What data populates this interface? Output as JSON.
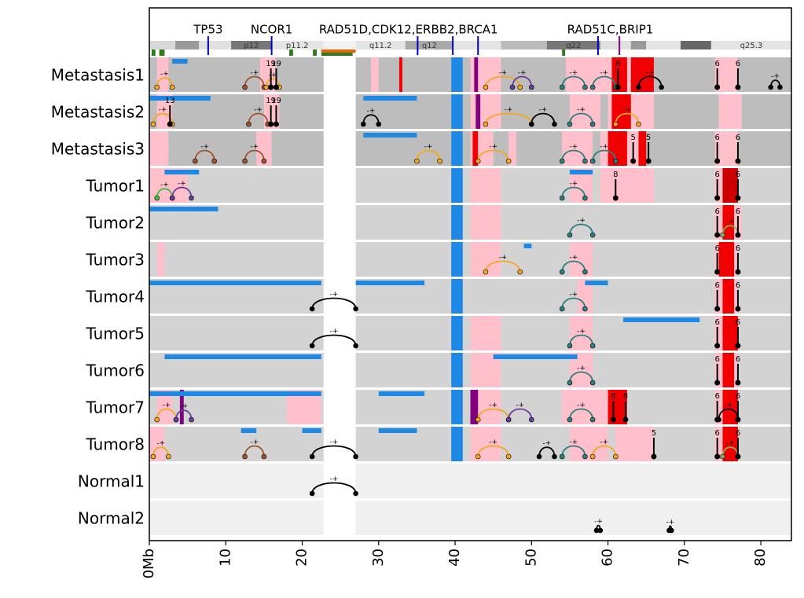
{
  "chart_data": {
    "type": "genome-tracks",
    "xlim": [
      0,
      84
    ],
    "xticks": [
      {
        "value": 0,
        "label": "0Mb"
      },
      10,
      20,
      30,
      40,
      50,
      60,
      70,
      80
    ],
    "gene_labels": [
      {
        "text": "TP53",
        "x": 7.7
      },
      {
        "text": "NCOR1",
        "x": 16.0
      },
      {
        "text": "RAD51D,CDK12,ERBB2,BRCA1",
        "x": 33.9
      },
      {
        "text": "RAD51C,BRIP1",
        "x": 60.3
      }
    ],
    "gene_lines": [
      {
        "x": 7.7,
        "color": "#0000cc"
      },
      {
        "x": 16.0,
        "color": "#0000cc"
      },
      {
        "x": 35.1,
        "color": "#0000cc"
      },
      {
        "x": 39.7,
        "color": "#0000cc"
      },
      {
        "x": 43.0,
        "color": "#0000cc"
      },
      {
        "x": 58.7,
        "color": "#0000cc"
      },
      {
        "x": 61.5,
        "color": "#800080"
      }
    ],
    "bands": [
      {
        "start": 0,
        "end": 3.4,
        "color": "#d8d8d8"
      },
      {
        "start": 3.4,
        "end": 6.5,
        "color": "#999999"
      },
      {
        "start": 6.5,
        "end": 10.7,
        "color": "#e0e0e0"
      },
      {
        "start": 10.7,
        "end": 16.0,
        "color": "#777777",
        "label": "p12"
      },
      {
        "start": 16.0,
        "end": 22.7,
        "color": "#e4e4e4",
        "label": "p11.2"
      },
      {
        "start": 22.7,
        "end": 27.0,
        "color": "#f2f2f2"
      },
      {
        "start": 27.0,
        "end": 33.5,
        "color": "#e4e4e4",
        "label": "q11.2"
      },
      {
        "start": 33.5,
        "end": 39.8,
        "color": "#aaaaaa",
        "label": "q12"
      },
      {
        "start": 39.8,
        "end": 46.0,
        "color": "#e4e4e4"
      },
      {
        "start": 46.0,
        "end": 52.0,
        "color": "#bbbbbb"
      },
      {
        "start": 52.0,
        "end": 59.0,
        "color": "#777777",
        "label": "q22"
      },
      {
        "start": 59.0,
        "end": 63.0,
        "color": "#e0e0e0"
      },
      {
        "start": 63.0,
        "end": 65.0,
        "color": "#999999"
      },
      {
        "start": 65.0,
        "end": 69.5,
        "color": "#e4e4e4"
      },
      {
        "start": 69.5,
        "end": 73.5,
        "color": "#666666"
      },
      {
        "start": 73.5,
        "end": 84.0,
        "color": "#e4e4e4",
        "label": "q25.3"
      }
    ],
    "features": [
      {
        "start": 0.3,
        "end": 0.8,
        "color": "#2e7d1a"
      },
      {
        "start": 1.3,
        "end": 2.0,
        "color": "#2e7d1a"
      },
      {
        "start": 18.3,
        "end": 18.8,
        "color": "#2e7d1a"
      },
      {
        "start": 21.4,
        "end": 21.9,
        "color": "#2e7d1a"
      },
      {
        "start": 22.5,
        "end": 26.6,
        "color": "#2e7d1a"
      },
      {
        "start": 22.5,
        "end": 27.0,
        "color": "#e8630a",
        "top": true
      },
      {
        "start": 54.0,
        "end": 54.4,
        "color": "#2e7d1a"
      }
    ],
    "centromere": [
      22.8,
      27.0
    ],
    "loss_color": "#1e88e5",
    "sv_label": "-+",
    "samples": [
      {
        "name": "Metastasis1",
        "background": "#bdbdbd",
        "segments": [
          [
            1,
            2.5,
            "#ffc0cb"
          ],
          [
            14.5,
            16.5,
            "#ffc0cb"
          ],
          [
            29,
            30,
            "#ffc0cb"
          ],
          [
            42,
            46,
            "#ffc0cb"
          ],
          [
            54.5,
            60,
            "#ffc0cb"
          ],
          [
            60,
            66,
            "#ffc0cb"
          ],
          [
            74,
            77,
            "#ffc0cb"
          ],
          [
            32.7,
            33.1,
            "#f00000"
          ],
          [
            60.5,
            62.5,
            "#f00000"
          ],
          [
            63,
            66,
            "#f00000"
          ],
          [
            42.5,
            43,
            "#800080"
          ],
          [
            39.5,
            41,
            "#1e88e5"
          ]
        ],
        "losses": [
          [
            3,
            5
          ]
        ],
        "arcs": [
          [
            1,
            3,
            "#f5a623"
          ],
          [
            12.5,
            15,
            "#a0522d"
          ],
          [
            15.3,
            17,
            "#f5a623"
          ],
          [
            44,
            48.5,
            "#f5a623"
          ],
          [
            47.5,
            50,
            "#6a3d9a"
          ],
          [
            54,
            57,
            "#2f7f7f"
          ],
          [
            58,
            61,
            "#2f7f7f"
          ],
          [
            64,
            67,
            "#000000"
          ],
          [
            81.3,
            82.5,
            "#000000"
          ]
        ],
        "markers": [
          [
            15.9,
            19
          ],
          [
            16.6,
            19
          ],
          [
            61.3,
            8
          ],
          [
            74.3,
            6
          ],
          [
            77,
            6
          ]
        ]
      },
      {
        "name": "Metastasis2",
        "background": "#bdbdbd",
        "segments": [
          [
            1,
            3,
            "#ffc0cb"
          ],
          [
            15,
            17,
            "#ffc0cb"
          ],
          [
            42,
            46,
            "#ffc0cb"
          ],
          [
            55,
            59,
            "#ffc0cb"
          ],
          [
            60,
            66,
            "#ffc0cb"
          ],
          [
            74.5,
            77.5,
            "#ffc0cb"
          ],
          [
            60.5,
            63,
            "#f00000"
          ],
          [
            42.7,
            43.3,
            "#800080"
          ],
          [
            39.5,
            41,
            "#1e88e5"
          ]
        ],
        "losses": [
          [
            0,
            8
          ],
          [
            28,
            35
          ]
        ],
        "arcs": [
          [
            0.5,
            3,
            "#f5a623"
          ],
          [
            13,
            15.5,
            "#a0522d"
          ],
          [
            28,
            30,
            "#000000"
          ],
          [
            44,
            50,
            "#f5a623"
          ],
          [
            50,
            53,
            "#000000"
          ],
          [
            55,
            58,
            "#2f7f7f"
          ],
          [
            61,
            64,
            "#f5a623"
          ]
        ],
        "markers": [
          [
            2.7,
            13
          ],
          [
            15.9,
            19
          ],
          [
            16.6,
            19
          ]
        ]
      },
      {
        "name": "Metastasis3",
        "background": "#bdbdbd",
        "segments": [
          [
            0,
            2.5,
            "#ffc0cb"
          ],
          [
            14,
            16,
            "#ffc0cb"
          ],
          [
            42,
            45,
            "#ffc0cb"
          ],
          [
            47,
            48,
            "#ffc0cb"
          ],
          [
            54,
            58,
            "#ffc0cb"
          ],
          [
            59,
            64,
            "#ffc0cb"
          ],
          [
            74,
            77,
            "#ffc0cb"
          ],
          [
            42.3,
            43,
            "#f00000"
          ],
          [
            60,
            62.5,
            "#f00000"
          ],
          [
            64,
            65,
            "#f00000"
          ],
          [
            39.5,
            41,
            "#1e88e5"
          ]
        ],
        "losses": [
          [
            28,
            35
          ]
        ],
        "arcs": [
          [
            6,
            8.5,
            "#a0522d"
          ],
          [
            12.5,
            15,
            "#a0522d"
          ],
          [
            35,
            38,
            "#f5a623"
          ],
          [
            43,
            47,
            "#f5a623"
          ],
          [
            54,
            57,
            "#2f7f7f"
          ],
          [
            58,
            61,
            "#2f7f7f"
          ]
        ],
        "markers": [
          [
            63.3,
            5
          ],
          [
            65.3,
            5
          ],
          [
            74.3,
            6
          ],
          [
            77,
            6
          ]
        ]
      },
      {
        "name": "Tumor1",
        "background": "#d3d3d3",
        "segments": [
          [
            0,
            5,
            "#ffc0cb"
          ],
          [
            42,
            46,
            "#ffc0cb"
          ],
          [
            55,
            58,
            "#ffc0cb"
          ],
          [
            59,
            66,
            "#ffc0cb"
          ],
          [
            74,
            77,
            "#ffc0cb"
          ],
          [
            75,
            77,
            "#cc0000"
          ],
          [
            39.5,
            41,
            "#1e88e5"
          ]
        ],
        "losses": [
          [
            2,
            6.5
          ],
          [
            55,
            58
          ]
        ],
        "arcs": [
          [
            1,
            3,
            "#44bb44"
          ],
          [
            3,
            5.5,
            "#6a3d9a"
          ],
          [
            54,
            57,
            "#2f7f7f"
          ]
        ],
        "markers": [
          [
            61,
            8
          ],
          [
            74.3,
            6
          ],
          [
            77,
            6
          ]
        ]
      },
      {
        "name": "Tumor2",
        "background": "#d3d3d3",
        "segments": [
          [
            42,
            46,
            "#ffc0cb"
          ],
          [
            74,
            77.5,
            "#ffc0cb"
          ],
          [
            75,
            76.5,
            "#f00000"
          ],
          [
            39.5,
            41,
            "#1e88e5"
          ]
        ],
        "losses": [
          [
            0,
            9
          ]
        ],
        "arcs": [
          [
            55,
            58,
            "#2f7f7f"
          ],
          [
            75,
            77,
            "#88aa55"
          ]
        ],
        "markers": [
          [
            74.3,
            6
          ],
          [
            77,
            6
          ]
        ]
      },
      {
        "name": "Tumor3",
        "background": "#d3d3d3",
        "segments": [
          [
            1,
            2,
            "#ffc0cb"
          ],
          [
            42,
            46,
            "#ffc0cb"
          ],
          [
            55,
            58,
            "#ffc0cb"
          ],
          [
            74,
            77,
            "#ffc0cb"
          ],
          [
            74.5,
            76.5,
            "#f00000"
          ],
          [
            39.5,
            41,
            "#1e88e5"
          ]
        ],
        "losses": [
          [
            49,
            50
          ]
        ],
        "arcs": [
          [
            44,
            48.5,
            "#f5a623"
          ],
          [
            54,
            57,
            "#2f7f7f"
          ]
        ],
        "markers": [
          [
            74.3,
            6
          ],
          [
            77,
            6
          ]
        ]
      },
      {
        "name": "Tumor4",
        "background": "#d3d3d3",
        "segments": [
          [
            56,
            58,
            "#ffc0cb"
          ],
          [
            74,
            77,
            "#ffc0cb"
          ],
          [
            75,
            76.5,
            "#f00000"
          ],
          [
            39.5,
            41,
            "#1e88e5"
          ]
        ],
        "losses": [
          [
            0,
            22.5
          ],
          [
            27,
            36
          ],
          [
            57,
            60
          ]
        ],
        "arcs": [
          [
            21.3,
            27,
            "#000000"
          ],
          [
            54,
            57,
            "#2f7f7f"
          ]
        ],
        "markers": [
          [
            74.3,
            6
          ],
          [
            77,
            6
          ]
        ]
      },
      {
        "name": "Tumor5",
        "background": "#d3d3d3",
        "segments": [
          [
            42,
            46,
            "#ffc0cb"
          ],
          [
            55,
            58,
            "#ffc0cb"
          ],
          [
            74,
            77,
            "#ffc0cb"
          ],
          [
            75,
            77,
            "#f00000"
          ],
          [
            39.5,
            41,
            "#1e88e5"
          ]
        ],
        "losses": [
          [
            62,
            72
          ]
        ],
        "arcs": [
          [
            21.3,
            27,
            "#000000"
          ],
          [
            55,
            58,
            "#2f7f7f"
          ]
        ],
        "markers": [
          [
            74.3,
            6
          ],
          [
            77,
            6
          ]
        ]
      },
      {
        "name": "Tumor6",
        "background": "#d3d3d3",
        "segments": [
          [
            42,
            46,
            "#ffc0cb"
          ],
          [
            55,
            58,
            "#ffc0cb"
          ],
          [
            74,
            77,
            "#ffc0cb"
          ],
          [
            75,
            76.5,
            "#f00000"
          ],
          [
            39.5,
            41,
            "#1e88e5"
          ]
        ],
        "losses": [
          [
            2,
            22.5
          ],
          [
            45,
            56
          ]
        ],
        "arcs": [
          [
            55,
            58,
            "#2f7f7f"
          ]
        ],
        "markers": [
          [
            74.3,
            6
          ],
          [
            77,
            6
          ]
        ]
      },
      {
        "name": "Tumor7",
        "background": "#d3d3d3",
        "segments": [
          [
            1,
            3,
            "#ffc0cb"
          ],
          [
            18,
            22.5,
            "#ffc0cb"
          ],
          [
            42,
            46,
            "#ffc0cb"
          ],
          [
            54,
            60,
            "#ffc0cb"
          ],
          [
            74,
            77,
            "#ffc0cb"
          ],
          [
            60,
            62.5,
            "#f00000"
          ],
          [
            75,
            77,
            "#f00000"
          ],
          [
            4,
            4.5,
            "#800080"
          ],
          [
            42,
            43,
            "#800080"
          ],
          [
            39.5,
            41,
            "#1e88e5"
          ]
        ],
        "losses": [
          [
            0,
            22.5
          ],
          [
            30,
            36
          ]
        ],
        "arcs": [
          [
            1,
            3.5,
            "#f5a623"
          ],
          [
            3.5,
            5.5,
            "#6a3d9a"
          ],
          [
            43,
            47,
            "#f5a623"
          ],
          [
            47,
            50,
            "#6a3d9a"
          ],
          [
            55,
            58,
            "#2f7f7f"
          ],
          [
            74.5,
            77,
            "#000000"
          ]
        ],
        "markers": [
          [
            60.7,
            8
          ],
          [
            62.3,
            8
          ],
          [
            74.3,
            6
          ],
          [
            77,
            6
          ]
        ]
      },
      {
        "name": "Tumor8",
        "background": "#d3d3d3",
        "segments": [
          [
            0,
            2,
            "#ffc0cb"
          ],
          [
            42,
            46,
            "#ffc0cb"
          ],
          [
            55,
            60,
            "#ffc0cb"
          ],
          [
            61,
            66,
            "#ffc0cb"
          ],
          [
            74,
            77,
            "#ffc0cb"
          ],
          [
            75,
            77,
            "#f00000"
          ],
          [
            39.5,
            41,
            "#1e88e5"
          ]
        ],
        "losses": [
          [
            12,
            14
          ],
          [
            20,
            22.5
          ],
          [
            30,
            35
          ]
        ],
        "arcs": [
          [
            0.5,
            2.5,
            "#f5a623"
          ],
          [
            12.5,
            15,
            "#a0522d"
          ],
          [
            21.3,
            27,
            "#000000"
          ],
          [
            43,
            47,
            "#f5a623"
          ],
          [
            51,
            53,
            "#000000"
          ],
          [
            54,
            57,
            "#2f7f7f"
          ],
          [
            58,
            61,
            "#f5a623"
          ],
          [
            75,
            77,
            "#88aa55"
          ]
        ],
        "markers": [
          [
            66,
            5
          ],
          [
            74.3,
            6
          ],
          [
            77,
            6
          ]
        ]
      },
      {
        "name": "Normal1",
        "background": "#f0f0f0",
        "segments": [],
        "losses": [],
        "arcs": [
          [
            21.3,
            27,
            "#000000"
          ]
        ],
        "markers": []
      },
      {
        "name": "Normal2",
        "background": "#f0f0f0",
        "segments": [],
        "losses": [],
        "arcs": [
          [
            58.5,
            59,
            "#000000"
          ],
          [
            68,
            68.3,
            "#000000"
          ]
        ],
        "markers": []
      }
    ]
  }
}
